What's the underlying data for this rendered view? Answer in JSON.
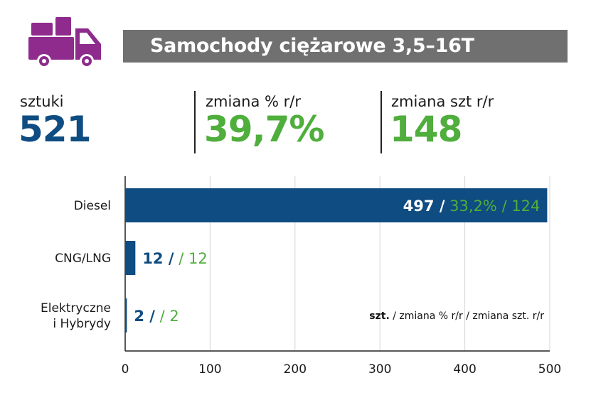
{
  "header": {
    "title": "Samochody ciężarowe 3,5–16T",
    "icon": "truck-icon",
    "icon_color": "#8e2b8c"
  },
  "kpis": [
    {
      "label": "sztuki",
      "value": "521",
      "color": "#0f4c81"
    },
    {
      "label": "zmiana % r/r",
      "value": "39,7%",
      "color": "#4fae3c"
    },
    {
      "label": "zmiana szt r/r",
      "value": "148",
      "color": "#4fae3c"
    }
  ],
  "chart_data": {
    "type": "bar",
    "orientation": "horizontal",
    "categories": [
      "Diesel",
      "CNG/LNG",
      "Elektryczne\ni Hybrydy"
    ],
    "values": [
      497,
      12,
      2
    ],
    "data_labels": [
      {
        "units": "497 /",
        "rest": "33,2% / 124"
      },
      {
        "units": "12 /",
        "rest": " / 12"
      },
      {
        "units": "2 /",
        "rest": " / 2"
      }
    ],
    "xlim": [
      0,
      500
    ],
    "xticks": [
      0,
      100,
      200,
      300,
      400,
      500
    ],
    "grid": true,
    "bar_color": "#0f4c81",
    "units_color": "#0f4c81",
    "rest_color": "#4fae3c",
    "legend": {
      "bold": "szt.",
      "rest": " / zmiana % r/r / zmiana szt. r/r"
    }
  }
}
